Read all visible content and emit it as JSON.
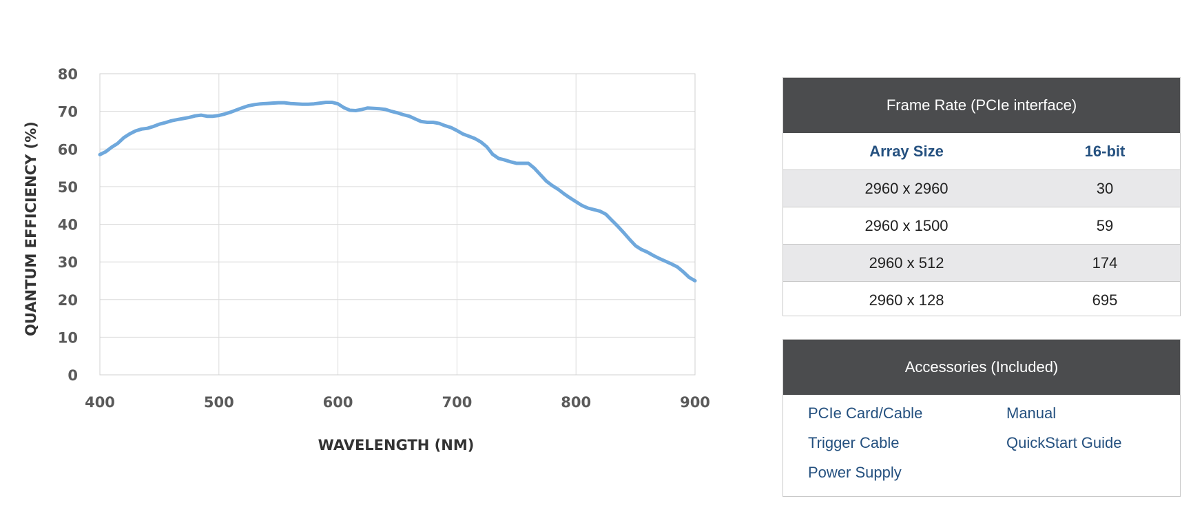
{
  "chart_data": {
    "type": "line",
    "xlabel": "WAVELENGTH (NM)",
    "ylabel": "QUANTUM EFFICIENCY (%)",
    "xlim": [
      400,
      900
    ],
    "ylim": [
      0,
      80
    ],
    "x_ticks": [
      "400",
      "500",
      "600",
      "700",
      "800",
      "900"
    ],
    "y_ticks": [
      "0",
      "10",
      "20",
      "30",
      "40",
      "50",
      "60",
      "70",
      "80"
    ],
    "grid": true,
    "line_color": "#6fa8dc",
    "series": [
      {
        "x": [
          400,
          405,
          410,
          415,
          420,
          425,
          430,
          435,
          440,
          445,
          450,
          455,
          460,
          465,
          470,
          475,
          480,
          485,
          490,
          495,
          500,
          505,
          510,
          515,
          520,
          525,
          530,
          535,
          540,
          545,
          550,
          555,
          560,
          565,
          570,
          575,
          580,
          585,
          590,
          595,
          600,
          605,
          610,
          615,
          620,
          625,
          630,
          635,
          640,
          645,
          650,
          655,
          660,
          665,
          670,
          675,
          680,
          685,
          690,
          695,
          700,
          705,
          710,
          715,
          720,
          725,
          730,
          735,
          740,
          745,
          750,
          755,
          760,
          765,
          770,
          775,
          780,
          785,
          790,
          795,
          800,
          805,
          810,
          815,
          820,
          825,
          830,
          835,
          840,
          845,
          850,
          855,
          860,
          865,
          870,
          875,
          880,
          885,
          890,
          895,
          900
        ],
        "y": [
          58.5,
          59.3,
          60.5,
          61.5,
          63.0,
          64.0,
          64.8,
          65.3,
          65.5,
          66.0,
          66.6,
          67.0,
          67.5,
          67.8,
          68.1,
          68.4,
          68.8,
          69.0,
          68.7,
          68.7,
          68.9,
          69.3,
          69.8,
          70.4,
          71.0,
          71.5,
          71.8,
          72.0,
          72.1,
          72.2,
          72.3,
          72.3,
          72.1,
          72.0,
          71.9,
          71.9,
          72.0,
          72.2,
          72.4,
          72.4,
          72.0,
          71.0,
          70.3,
          70.2,
          70.5,
          70.9,
          70.8,
          70.7,
          70.5,
          70.0,
          69.6,
          69.1,
          68.7,
          68.0,
          67.3,
          67.1,
          67.1,
          66.8,
          66.2,
          65.7,
          64.9,
          64.0,
          63.4,
          62.8,
          61.9,
          60.6,
          58.6,
          57.5,
          57.1,
          56.6,
          56.2,
          56.2,
          56.2,
          54.9,
          53.2,
          51.5,
          50.3,
          49.3,
          48.1,
          47.0,
          46.0,
          45.0,
          44.3,
          43.9,
          43.5,
          42.7,
          41.1,
          39.5,
          37.8,
          36.0,
          34.3,
          33.3,
          32.6,
          31.7,
          30.9,
          30.2,
          29.5,
          28.7,
          27.4,
          25.9,
          25.0
        ]
      }
    ]
  },
  "frame_rate": {
    "title": "Frame Rate (PCIe interface)",
    "col_a": "Array Size",
    "col_b": "16-bit",
    "rows": [
      {
        "size": "2960 x 2960",
        "rate": "30"
      },
      {
        "size": "2960 x 1500",
        "rate": "59"
      },
      {
        "size": "2960 x 512",
        "rate": "174"
      },
      {
        "size": "2960 x 128",
        "rate": "695"
      }
    ]
  },
  "accessories": {
    "title": "Accessories (Included)",
    "items": [
      "PCIe Card/Cable",
      "Manual",
      "Trigger Cable",
      "QuickStart Guide",
      "Power Supply"
    ]
  }
}
